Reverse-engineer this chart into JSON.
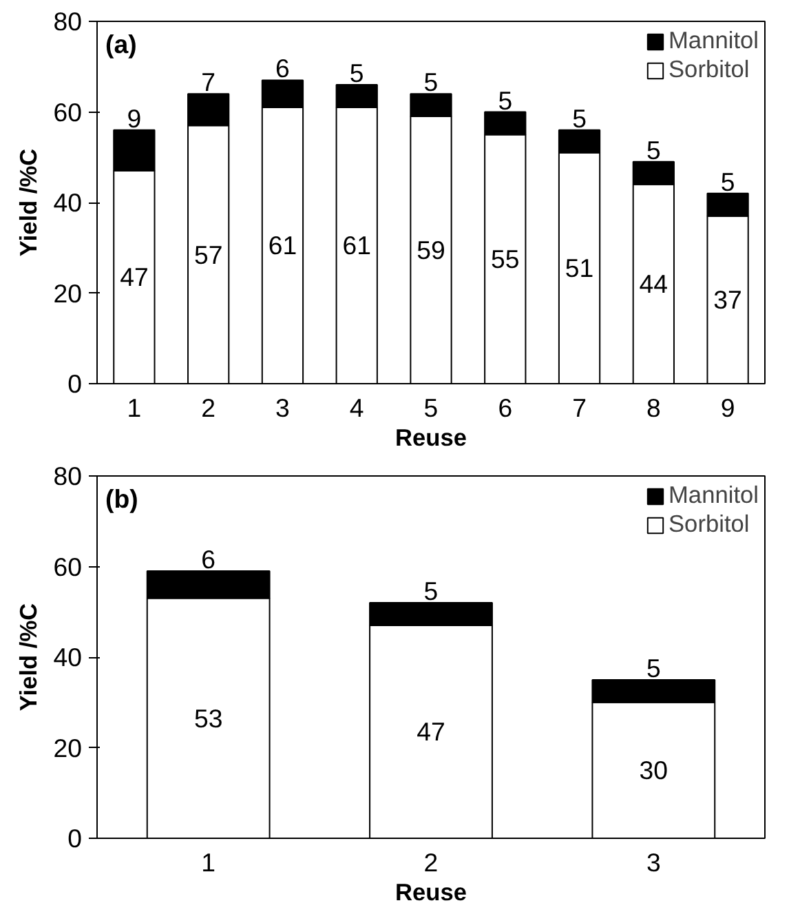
{
  "chart_data": [
    {
      "type": "bar",
      "stacked": true,
      "title": "(a)",
      "xlabel": "Reuse",
      "ylabel": "Yield /%C",
      "categories": [
        "1",
        "2",
        "3",
        "4",
        "5",
        "6",
        "7",
        "8",
        "9"
      ],
      "ylim": [
        0,
        80
      ],
      "yticks": [
        0,
        20,
        40,
        60,
        80
      ],
      "legend": "top right",
      "data_labels": true,
      "series": [
        {
          "name": "Sorbitol",
          "color": "#ffffff",
          "values": [
            47,
            57,
            61,
            61,
            59,
            55,
            51,
            44,
            37
          ]
        },
        {
          "name": "Mannitol",
          "color": "#000000",
          "values": [
            9,
            7,
            6,
            5,
            5,
            5,
            5,
            5,
            5
          ]
        }
      ]
    },
    {
      "type": "bar",
      "stacked": true,
      "title": "(b)",
      "xlabel": "Reuse",
      "ylabel": "Yield /%C",
      "categories": [
        "1",
        "2",
        "3"
      ],
      "ylim": [
        0,
        80
      ],
      "yticks": [
        0,
        20,
        40,
        60,
        80
      ],
      "legend": "top right",
      "data_labels": true,
      "series": [
        {
          "name": "Sorbitol",
          "color": "#ffffff",
          "values": [
            53,
            47,
            30
          ]
        },
        {
          "name": "Mannitol",
          "color": "#000000",
          "values": [
            6,
            5,
            5
          ]
        }
      ]
    }
  ]
}
